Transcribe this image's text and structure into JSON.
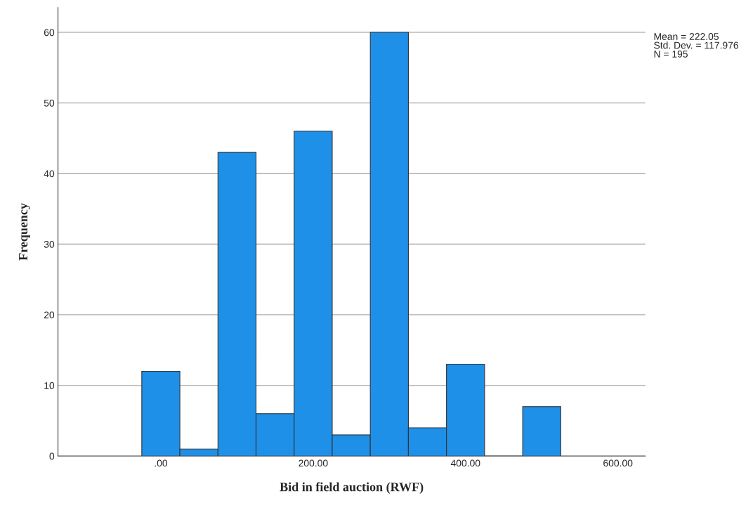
{
  "chart_data": {
    "type": "histogram",
    "xlabel": "Bid in field auction (RWF)",
    "ylabel": "Frequency",
    "bins": [
      -25,
      25,
      75,
      125,
      175,
      225,
      275,
      325,
      375,
      425,
      475,
      525
    ],
    "values": [
      12,
      1,
      43,
      6,
      46,
      3,
      60,
      4,
      13,
      0,
      7
    ],
    "color": "#1f90e8",
    "xlim": [
      -135,
      636
    ],
    "xticks": [
      {
        "value": 0,
        "label": ".00"
      },
      {
        "value": 200,
        "label": "200.00"
      },
      {
        "value": 400,
        "label": "400.00"
      },
      {
        "value": 600,
        "label": "600.00"
      }
    ],
    "ylim": [
      0,
      63.5
    ],
    "yticks": [
      0,
      10,
      20,
      30,
      40,
      50,
      60
    ],
    "grid": "y",
    "annotations": [
      "Mean = 222.05",
      "Std. Dev. = 117.976",
      "N = 195"
    ]
  }
}
